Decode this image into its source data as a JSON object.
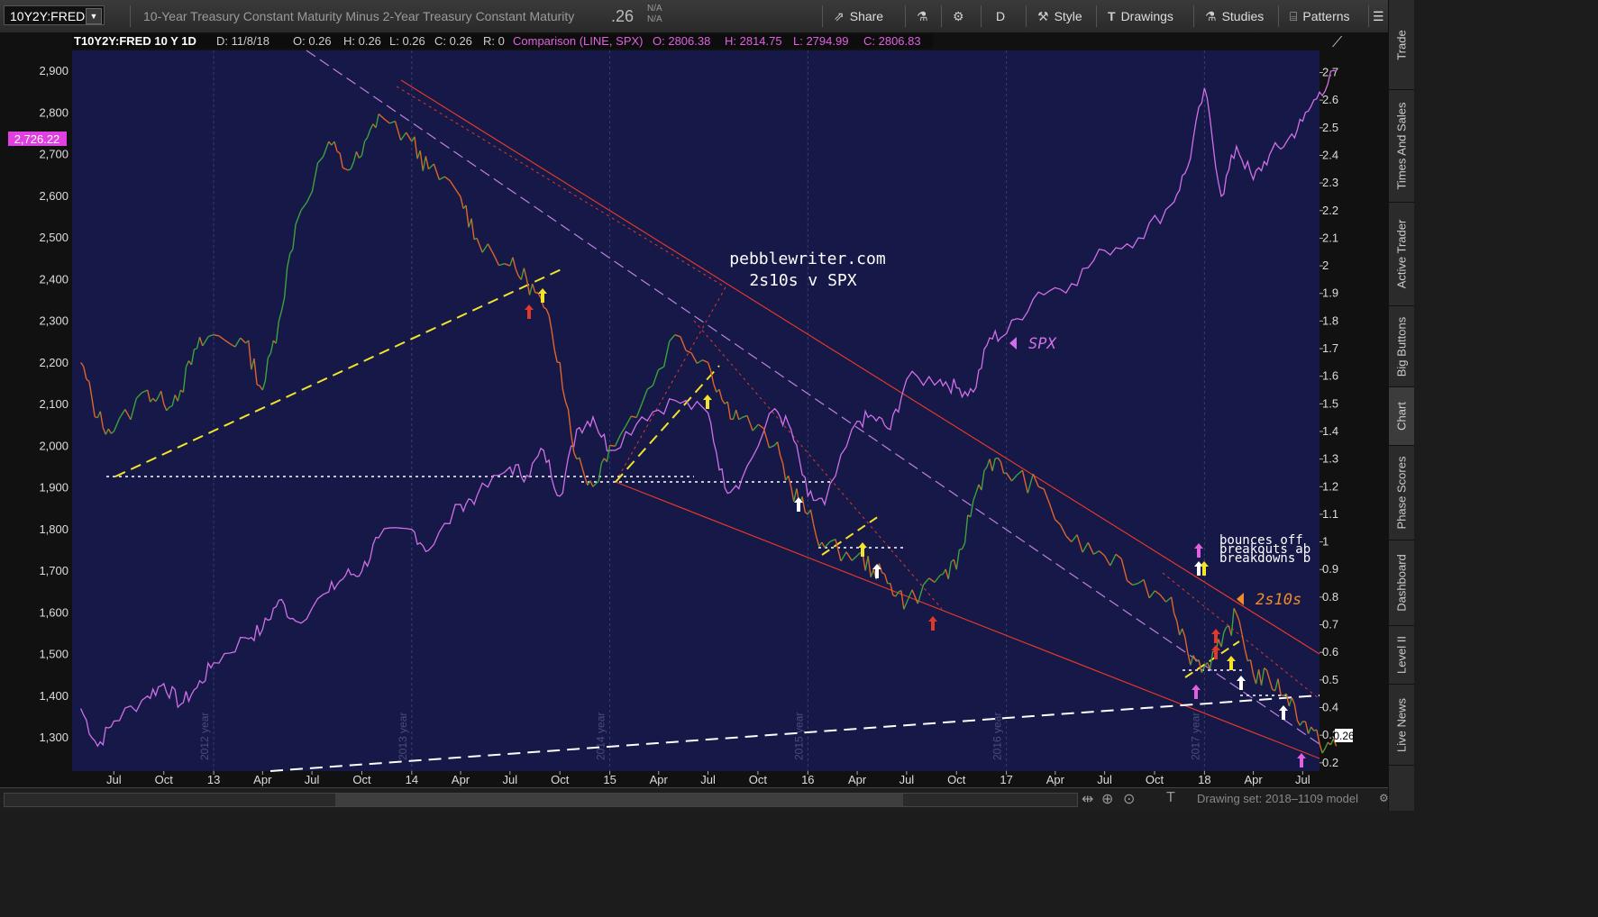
{
  "header": {
    "symbol": "10Y2Y:FRED",
    "description": "10-Year Treasury Constant Maturity Minus 2-Year Treasury Constant Maturity",
    "last_value": ".26",
    "na1": "N/A",
    "na2": "N/A",
    "period": "D",
    "buttons": {
      "share": "Share",
      "style": "Style",
      "drawings": "Drawings",
      "studies": "Studies",
      "patterns": "Patterns"
    }
  },
  "legend": {
    "symbol": "T10Y2Y:FRED 10 Y 1D",
    "date": "D: 11/8/18",
    "open": "O: 0.26",
    "high": "H: 0.26",
    "low": "L: 0.26",
    "close": "C: 0.26",
    "range": "R: 0",
    "comparison": "Comparison (LINE, SPX)",
    "cmp_open": "O: 2806.38",
    "cmp_high": "H: 2814.75",
    "cmp_low": "L: 2794.99",
    "cmp_close": "C: 2806.83"
  },
  "side_tabs": [
    "Trade",
    "Times And Sales",
    "Active Trader",
    "Big Buttons",
    "Chart",
    "Phase Scores",
    "Dashboard",
    "Level II",
    "Live News"
  ],
  "status": {
    "drawing_set": "Drawing set: 2018–1109 model"
  },
  "colors": {
    "background": "#161847",
    "spx_line": "#d070e8",
    "spread_up": "#3ca33c",
    "spread_down": "#e0642a",
    "channel": "#e0392b",
    "dashed_violet": "#c080e0",
    "yellow": "#f2e32b",
    "white": "#ffffff"
  },
  "chart_data": {
    "type": "line",
    "title": "pebblewriter.com",
    "subtitle": "2s10s v SPX",
    "left_axis_ticks": [
      "2,900",
      "2,800",
      "2,700",
      "2,600",
      "2,500",
      "2,400",
      "2,300",
      "2,200",
      "2,100",
      "2,000",
      "1,900",
      "1,800",
      "1,700",
      "1,600",
      "1,500",
      "1,400",
      "1,300"
    ],
    "right_axis_ticks": [
      "2.7",
      "2.6",
      "2.5",
      "2.4",
      "2.3",
      "2.2",
      "2.1",
      "2",
      "1.9",
      "1.8",
      "1.7",
      "1.6",
      "1.5",
      "1.4",
      "1.3",
      "1.2",
      "1.1",
      "1",
      "0.9",
      "0.8",
      "0.7",
      "0.6",
      "0.5",
      "0.4",
      "0.3",
      "0.2"
    ],
    "x_ticks": [
      "Jul",
      "Oct",
      "13",
      "Apr",
      "Jul",
      "Oct",
      "14",
      "Apr",
      "Jul",
      "Oct",
      "15",
      "Apr",
      "Jul",
      "Oct",
      "16",
      "Apr",
      "Jul",
      "Oct",
      "17",
      "Apr",
      "Jul",
      "Oct",
      "18",
      "Apr",
      "Jul"
    ],
    "year_markers": [
      "2012 year",
      "2013 year",
      "2014 year",
      "2015 year",
      "2016 year",
      "2017 year"
    ],
    "left_ylim": [
      1220,
      2950
    ],
    "right_ylim": [
      0.17,
      2.78
    ],
    "spx_price_label": "2,726.22",
    "spread_price_label": "0.26",
    "labels": {
      "spx": "SPX",
      "spread": "2s10s",
      "legend_text": [
        "bounces off",
        "breakouts ab",
        "breakdowns b"
      ]
    },
    "series": [
      {
        "name": "SPX",
        "axis": "left",
        "x": [
          "2012-05",
          "2012-06",
          "2012-07",
          "2012-09",
          "2012-10",
          "2012-11",
          "2012-12",
          "2013-01",
          "2013-03",
          "2013-04",
          "2013-05",
          "2013-06",
          "2013-08",
          "2013-09",
          "2013-10",
          "2013-11",
          "2014-01",
          "2014-02",
          "2014-04",
          "2014-05",
          "2014-07",
          "2014-08",
          "2014-09",
          "2014-10",
          "2014-11",
          "2014-12",
          "2015-01",
          "2015-03",
          "2015-05",
          "2015-07",
          "2015-08",
          "2015-09",
          "2015-11",
          "2015-12",
          "2016-01",
          "2016-02",
          "2016-04",
          "2016-05",
          "2016-06",
          "2016-07",
          "2016-09",
          "2016-10",
          "2016-11",
          "2016-12",
          "2017-01",
          "2017-03",
          "2017-05",
          "2017-07",
          "2017-09",
          "2017-11",
          "2017-12",
          "2018-01",
          "2018-02",
          "2018-03",
          "2018-04",
          "2018-05",
          "2018-06",
          "2018-07",
          "2018-08",
          "2018-09"
        ],
        "values": [
          1370,
          1280,
          1340,
          1400,
          1430,
          1380,
          1420,
          1480,
          1540,
          1560,
          1630,
          1580,
          1650,
          1690,
          1700,
          1780,
          1800,
          1750,
          1860,
          1880,
          1950,
          1930,
          1990,
          1880,
          2040,
          2070,
          1990,
          2070,
          2110,
          2080,
          1900,
          1920,
          2090,
          2040,
          1880,
          1860,
          2060,
          2070,
          2040,
          2160,
          2160,
          2140,
          2130,
          2260,
          2270,
          2370,
          2390,
          2470,
          2500,
          2580,
          2670,
          2860,
          2600,
          2720,
          2640,
          2700,
          2730,
          2780,
          2850,
          2900
        ]
      },
      {
        "name": "2s10s",
        "axis": "right",
        "x": [
          "2012-05",
          "2012-06",
          "2012-07",
          "2012-09",
          "2012-10",
          "2012-11",
          "2012-12",
          "2013-01",
          "2013-03",
          "2013-04",
          "2013-05",
          "2013-06",
          "2013-08",
          "2013-09",
          "2013-10",
          "2013-11",
          "2014-01",
          "2014-02",
          "2014-04",
          "2014-05",
          "2014-07",
          "2014-08",
          "2014-09",
          "2014-10",
          "2014-11",
          "2014-12",
          "2015-01",
          "2015-03",
          "2015-05",
          "2015-07",
          "2015-08",
          "2015-09",
          "2015-11",
          "2015-12",
          "2016-01",
          "2016-02",
          "2016-04",
          "2016-05",
          "2016-06",
          "2016-07",
          "2016-09",
          "2016-10",
          "2016-11",
          "2016-12",
          "2017-01",
          "2017-03",
          "2017-05",
          "2017-07",
          "2017-09",
          "2017-11",
          "2017-12",
          "2018-01",
          "2018-02",
          "2018-03",
          "2018-04",
          "2018-05",
          "2018-06",
          "2018-07",
          "2018-08",
          "2018-09"
        ],
        "values": [
          1.65,
          1.45,
          1.4,
          1.55,
          1.5,
          1.55,
          1.7,
          1.75,
          1.72,
          1.55,
          1.8,
          2.15,
          2.45,
          2.35,
          2.4,
          2.55,
          2.45,
          2.35,
          2.25,
          2.1,
          2.0,
          1.95,
          1.85,
          1.65,
          1.3,
          1.2,
          1.35,
          1.5,
          1.75,
          1.65,
          1.5,
          1.45,
          1.35,
          1.2,
          1.1,
          0.98,
          0.95,
          0.9,
          0.85,
          0.78,
          0.88,
          0.9,
          1.15,
          1.3,
          1.25,
          1.2,
          1.0,
          0.95,
          0.85,
          0.8,
          0.6,
          0.55,
          0.62,
          0.74,
          0.52,
          0.5,
          0.45,
          0.35,
          0.27,
          0.26
        ]
      }
    ]
  }
}
